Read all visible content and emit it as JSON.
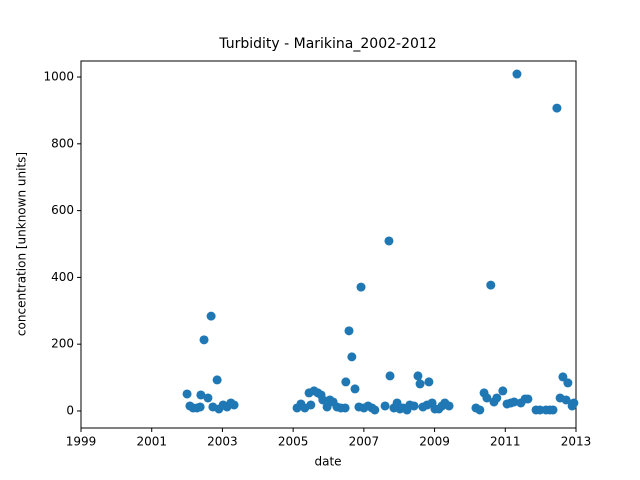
{
  "chart_data": {
    "type": "scatter",
    "title": "Turbidity - Marikina_2002-2012",
    "x_label": "date",
    "y_label": "concentration [unknown units]",
    "xlim": [
      1999,
      2013
    ],
    "xticks": [
      1999,
      2001,
      2003,
      2005,
      2007,
      2009,
      2011,
      2013
    ],
    "ylim": [
      -51,
      1048
    ],
    "yticks": [
      0,
      200,
      400,
      600,
      800,
      1000
    ],
    "series": [
      {
        "color": "#1f77b4",
        "x": [
          2002.0,
          2002.08,
          2002.17,
          2002.28,
          2002.37,
          2002.39,
          2002.48,
          2002.59,
          2002.68,
          2002.73,
          2002.85,
          2002.9,
          2003.02,
          2003.13,
          2003.24,
          2003.33,
          2005.11,
          2005.22,
          2005.33,
          2005.45,
          2005.5,
          2005.59,
          2005.7,
          2005.79,
          2005.84,
          2005.96,
          2006.04,
          2006.13,
          2006.24,
          2006.35,
          2006.47,
          2006.49,
          2006.58,
          2006.66,
          2006.75,
          2006.86,
          2006.92,
          2007.0,
          2007.12,
          2007.23,
          2007.31,
          2007.6,
          2007.71,
          2007.74,
          2007.85,
          2007.94,
          2008.02,
          2008.11,
          2008.22,
          2008.3,
          2008.42,
          2008.53,
          2008.59,
          2008.67,
          2008.79,
          2008.84,
          2008.93,
          2009.01,
          2009.12,
          2009.21,
          2009.29,
          2009.41,
          2010.17,
          2010.28,
          2010.4,
          2010.48,
          2010.59,
          2010.68,
          2010.76,
          2010.93,
          2011.05,
          2011.16,
          2011.25,
          2011.33,
          2011.44,
          2011.56,
          2011.64,
          2011.87,
          2011.98,
          2012.15,
          2012.26,
          2012.35,
          2012.46,
          2012.55,
          2012.63,
          2012.72,
          2012.77,
          2012.89,
          2012.94
        ],
        "values": [
          51,
          15,
          9,
          9,
          12,
          48,
          213,
          39,
          284,
          12,
          93,
          6,
          18,
          12,
          24,
          18,
          9,
          21,
          9,
          54,
          18,
          60,
          54,
          48,
          33,
          12,
          33,
          27,
          12,
          9,
          9,
          87,
          240,
          162,
          66,
          12,
          371,
          9,
          15,
          9,
          3,
          15,
          509,
          105,
          9,
          24,
          6,
          9,
          3,
          18,
          15,
          105,
          81,
          12,
          18,
          87,
          24,
          6,
          6,
          15,
          24,
          15,
          9,
          3,
          54,
          39,
          377,
          27,
          39,
          60,
          21,
          24,
          27,
          1009,
          24,
          36,
          36,
          3,
          3,
          3,
          3,
          3,
          907,
          39,
          102,
          33,
          84,
          15,
          24
        ]
      }
    ]
  }
}
